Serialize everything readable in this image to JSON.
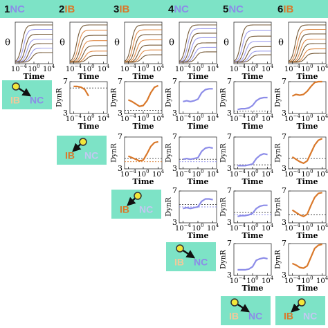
{
  "chart_data": {
    "type": "panel-grid",
    "colors": {
      "IB": "#d9782a",
      "NC": "#8c8ce8",
      "IB_faded": "#f3c99a",
      "NC_faded": "#c3c8f2",
      "band": "#7de3c6"
    },
    "header": [
      {
        "number": "1",
        "type": "NC"
      },
      {
        "number": "2",
        "type": "IB"
      },
      {
        "number": "3",
        "type": "IB"
      },
      {
        "number": "4",
        "type": "NC"
      },
      {
        "number": "5",
        "type": "NC"
      },
      {
        "number": "6",
        "type": "IB"
      }
    ],
    "time_label": "Time",
    "dynr_label": "DynR",
    "theta_label": "θ",
    "tick_base": "10",
    "xlim": [
      -5,
      5
    ],
    "xticks": [
      {
        "value": -4,
        "label": "−4"
      },
      0,
      4
    ],
    "ylim": [
      3,
      7
    ],
    "yticks": [
      3,
      7
    ],
    "x": [
      -4,
      -3,
      -2,
      -1,
      0,
      1,
      2,
      3,
      4
    ],
    "top_panels": [
      {
        "plateaus": [
          1,
          0.88,
          0.75,
          0.62,
          0.5,
          0.38,
          0.26
        ]
      },
      {
        "plateaus": [
          1,
          0.86,
          0.72,
          0.58,
          0.44,
          0.3,
          0.18
        ]
      },
      {
        "plateaus": [
          1,
          0.87,
          0.74,
          0.6,
          0.46,
          0.33,
          0.2
        ]
      },
      {
        "plateaus": [
          1,
          0.9,
          0.78,
          0.66,
          0.52,
          0.4,
          0.28
        ]
      },
      {
        "plateaus": [
          1,
          0.85,
          0.7,
          0.56,
          0.42,
          0.3,
          0.2
        ]
      },
      {
        "plateaus": [
          1,
          0.88,
          0.76,
          0.62,
          0.5,
          0.36,
          0.24
        ]
      }
    ],
    "rows": [
      {
        "icon": {
          "left": "IB",
          "right": "NC",
          "target": "NC"
        },
        "plots": [
          {
            "values": [
              6.4,
              6.4,
              6.3,
              6.0,
              5.2,
              null,
              null,
              null,
              null
            ],
            "ref": [
              6.2
            ]
          },
          {
            "values": [
              4.7,
              4.5,
              4.2,
              3.9,
              4.0,
              4.6,
              5.6,
              6.3,
              6.5
            ],
            "ref": [
              3.4
            ]
          },
          {
            "values": [
              4.5,
              4.6,
              4.5,
              4.6,
              4.8,
              5.6,
              6.0,
              6.1,
              6.1
            ],
            "ref": []
          },
          {
            "values": [
              3.5,
              3.6,
              3.6,
              3.7,
              4.0,
              4.6,
              4.9,
              5.0,
              5.0
            ],
            "ref": [
              3.3
            ]
          },
          {
            "values": [
              5.2,
              5.4,
              5.3,
              5.4,
              5.8,
              6.4,
              6.9,
              7.0,
              7.0
            ],
            "ref": []
          }
        ]
      },
      {
        "icon": {
          "left": "IB",
          "right": "NC",
          "target": "IB"
        },
        "plots": [
          {
            "values": [
              4.6,
              4.4,
              4.2,
              4.0,
              4.1,
              4.9,
              5.8,
              6.3,
              6.4
            ],
            "ref": [
              4.3,
              3.9
            ]
          },
          {
            "values": [
              4.2,
              4.3,
              4.2,
              4.3,
              4.4,
              5.2,
              5.6,
              5.7,
              5.6
            ],
            "ref": [
              4.2,
              3.9
            ]
          },
          {
            "values": [
              3.4,
              3.4,
              3.4,
              3.5,
              3.6,
              4.3,
              4.7,
              4.9,
              4.8
            ],
            "ref": [
              3.5
            ]
          },
          {
            "values": [
              4.5,
              4.2,
              3.9,
              3.7,
              4.0,
              5.0,
              6.0,
              6.6,
              6.8
            ],
            "ref": [
              4.3
            ]
          }
        ]
      },
      {
        "icon": {
          "left": "IB",
          "right": "NC",
          "target": "IB"
        },
        "plots": [
          {
            "values": [
              4.8,
              4.9,
              4.8,
              4.9,
              5.0,
              5.7,
              6.0,
              6.0,
              5.9
            ],
            "ref": [
              5.3,
              5.0
            ]
          },
          {
            "values": [
              3.8,
              3.9,
              3.9,
              4.0,
              4.2,
              4.8,
              5.1,
              5.2,
              5.2
            ],
            "ref": [
              4.3,
              4.0
            ]
          },
          {
            "values": [
              4.6,
              4.3,
              4.0,
              3.8,
              4.1,
              5.2,
              6.2,
              6.7,
              6.8
            ],
            "ref": [
              4.0
            ]
          }
        ]
      },
      {
        "icon": {
          "left": "IB",
          "right": "NC",
          "target": "NC"
        },
        "plots": [
          {
            "values": [
              3.7,
              3.7,
              3.7,
              3.8,
              4.1,
              4.9,
              5.1,
              5.2,
              5.1
            ],
            "ref": []
          },
          {
            "values": [
              4.5,
              4.3,
              4.0,
              3.9,
              4.2,
              5.3,
              6.4,
              6.8,
              6.9
            ],
            "ref": []
          }
        ]
      }
    ],
    "final_icons": [
      {
        "left": "IB",
        "right": "NC",
        "target": "NC"
      },
      {
        "left": "IB",
        "right": "NC",
        "target": "IB"
      }
    ]
  }
}
